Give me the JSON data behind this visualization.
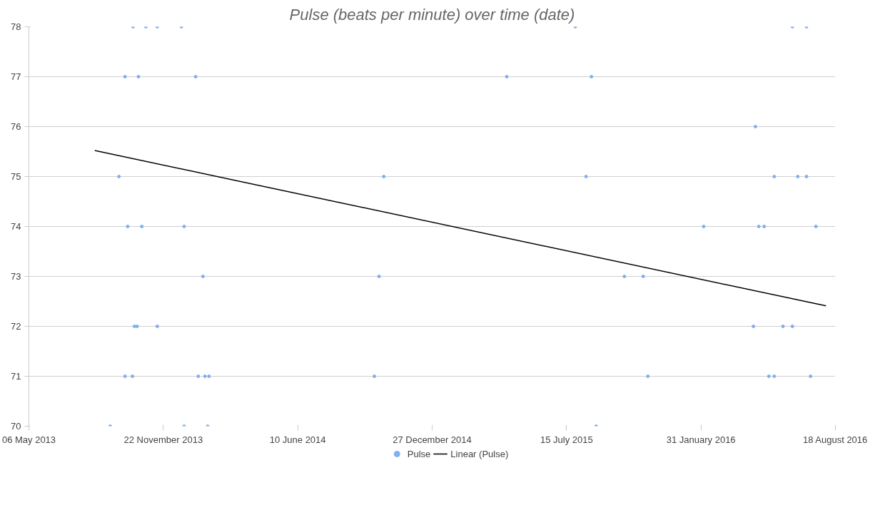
{
  "chart_data": {
    "type": "scatter",
    "title": "Pulse (beats per minute) over time (date)",
    "xlim": [
      "2013-05-06",
      "2016-08-18"
    ],
    "xticks": [
      {
        "value": "2013-05-06",
        "label": "06 May 2013"
      },
      {
        "value": "2013-11-22",
        "label": "22 November 2013"
      },
      {
        "value": "2014-06-10",
        "label": "10 June 2014"
      },
      {
        "value": "2014-12-27",
        "label": "27 December 2014"
      },
      {
        "value": "2015-07-15",
        "label": "15 July 2015"
      },
      {
        "value": "2016-01-31",
        "label": "31 January 2016"
      },
      {
        "value": "2016-08-18",
        "label": "18 August 2016"
      }
    ],
    "ylim": [
      70,
      78
    ],
    "yticks": [
      70,
      71,
      72,
      73,
      74,
      75,
      76,
      77,
      78
    ],
    "grid": "y",
    "legend": "bottom",
    "series": [
      {
        "name": "Pulse",
        "marker": "circle",
        "color": "#7eb0f2",
        "x": [
          "2013-09-04",
          "2013-09-17",
          "2013-09-26",
          "2013-09-26",
          "2013-09-30",
          "2013-10-07",
          "2013-10-08",
          "2013-10-10",
          "2013-10-14",
          "2013-10-16",
          "2013-10-21",
          "2013-10-27",
          "2013-11-13",
          "2013-11-13",
          "2013-12-19",
          "2013-12-23",
          "2013-12-23",
          "2014-01-09",
          "2014-01-13",
          "2014-01-20",
          "2014-01-23",
          "2014-01-27",
          "2014-01-29",
          "2014-10-02",
          "2014-10-09",
          "2014-10-16",
          "2015-04-17",
          "2015-07-28",
          "2015-08-13",
          "2015-08-21",
          "2015-08-28",
          "2015-10-09",
          "2015-11-06",
          "2015-11-13",
          "2016-02-04",
          "2016-04-18",
          "2016-04-21",
          "2016-04-26",
          "2016-05-04",
          "2016-05-11",
          "2016-05-19",
          "2016-05-19",
          "2016-06-01",
          "2016-06-15",
          "2016-06-15",
          "2016-06-23",
          "2016-07-06",
          "2016-07-06",
          "2016-07-12",
          "2016-07-20"
        ],
        "values": [
          70,
          75,
          77,
          71,
          74,
          71,
          78,
          72,
          72,
          77,
          74,
          78,
          78,
          72,
          78,
          74,
          70,
          77,
          71,
          73,
          71,
          70,
          71,
          71,
          73,
          75,
          77,
          78,
          75,
          77,
          70,
          73,
          73,
          71,
          74,
          72,
          76,
          74,
          74,
          71,
          75,
          71,
          72,
          78,
          72,
          75,
          78,
          75,
          71,
          74
        ]
      },
      {
        "name": "Linear (Pulse)",
        "type": "line",
        "marker": "none",
        "color": "#000000",
        "x": [
          "2013-08-12",
          "2016-08-04"
        ],
        "values": [
          75.52,
          72.41
        ]
      }
    ]
  }
}
